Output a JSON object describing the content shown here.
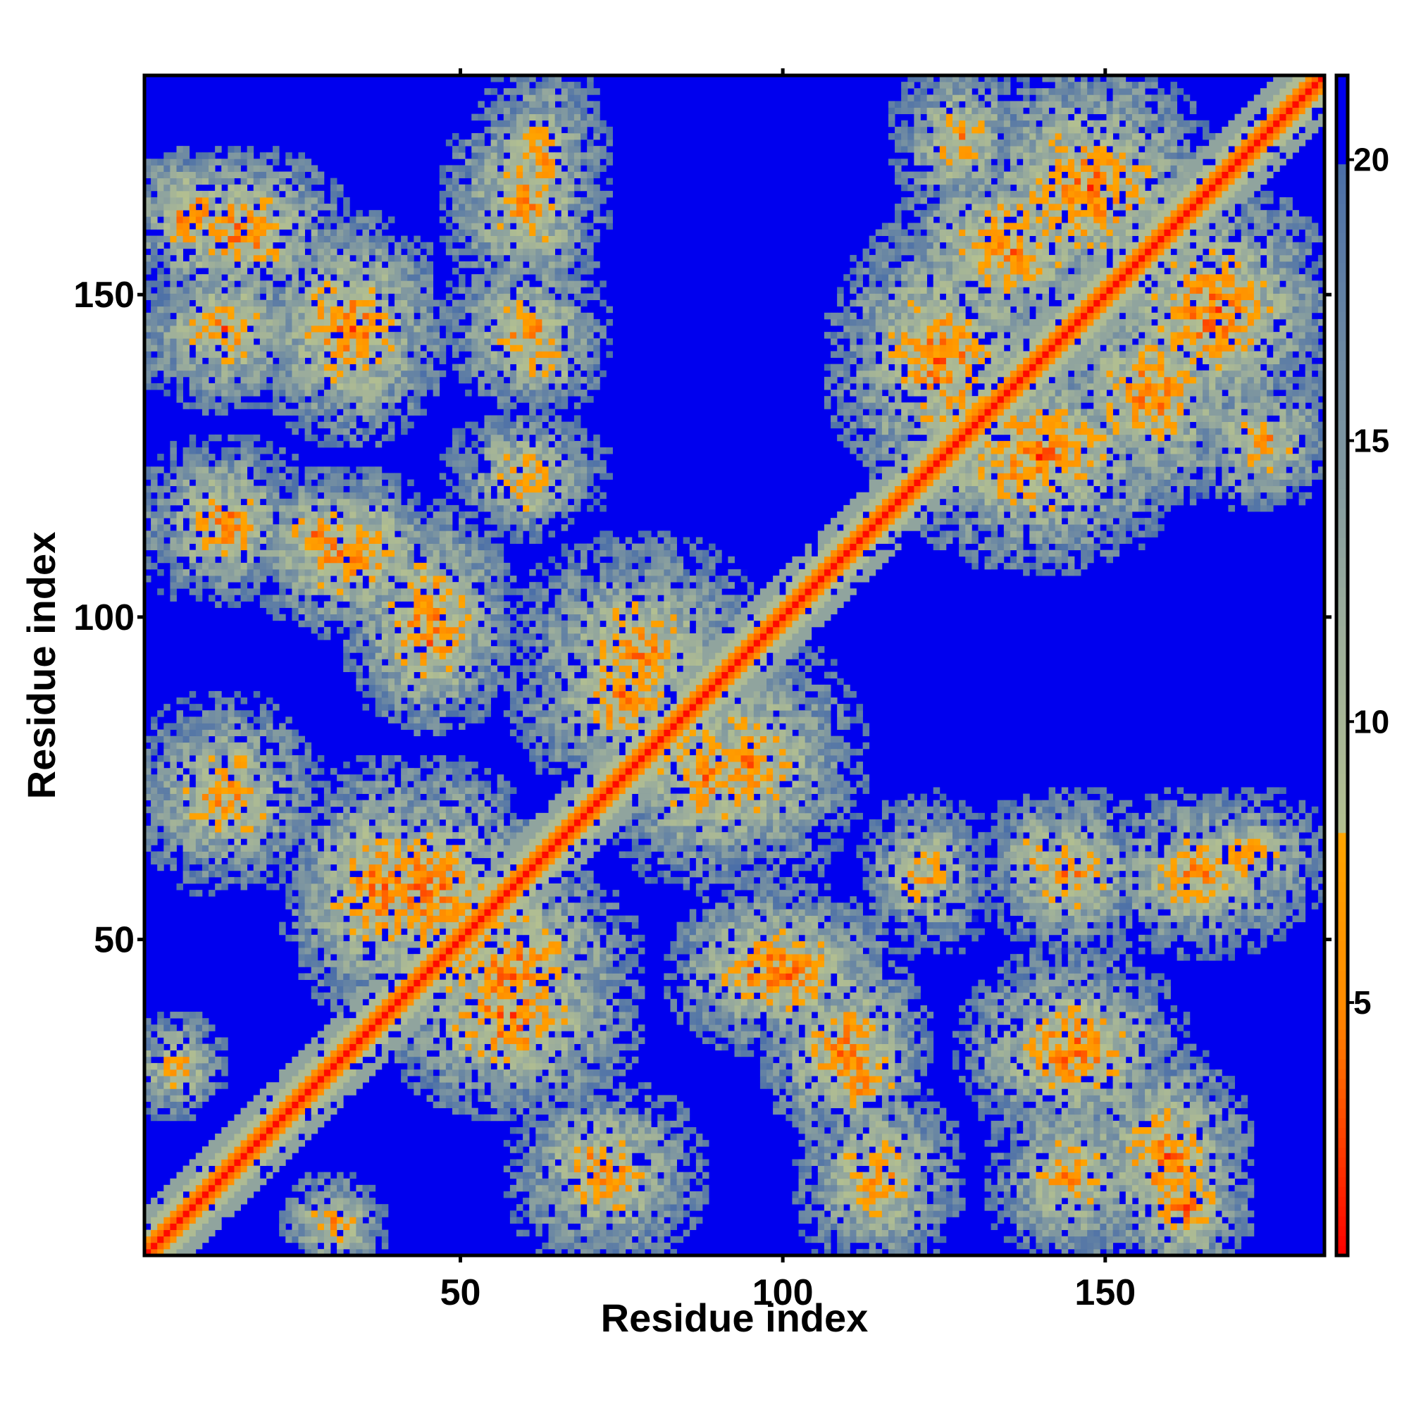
{
  "chart_data": {
    "type": "heatmap",
    "title": "",
    "xlabel": "Residue index",
    "ylabel": "Residue index",
    "n_residues": 184,
    "xlim": [
      1,
      184
    ],
    "ylim": [
      1,
      184
    ],
    "x_ticks": [
      50,
      100,
      150
    ],
    "y_ticks": [
      50,
      100,
      150
    ],
    "x_tick_labels": [
      "50",
      "100",
      "150"
    ],
    "y_tick_labels": [
      "50",
      "100",
      "150"
    ],
    "colorbar": {
      "range": [
        0.5,
        21.5
      ],
      "ticks": [
        5,
        10,
        15,
        20
      ],
      "tick_labels": [
        "5",
        "10",
        "15",
        "20"
      ],
      "stops": [
        {
          "value": 0.5,
          "color": "#ff0000"
        },
        {
          "value": 5.0,
          "color": "#ff8c00"
        },
        {
          "value": 8.0,
          "color": "#ffa500"
        },
        {
          "value": 8.01,
          "color": "#b4c090"
        },
        {
          "value": 12.0,
          "color": "#9aac9c"
        },
        {
          "value": 20.0,
          "color": "#4a6ea8"
        },
        {
          "value": 20.01,
          "color": "#0000ee"
        }
      ]
    },
    "out_of_range_color": "#0000ee",
    "description_of_values": "Symmetric residue-residue distance map: near-zero distances on the diagonal, contact clusters off-diagonal.",
    "contact_clusters": [
      {
        "i": [
          1,
          30
        ],
        "j": [
          150,
          170
        ],
        "min_value": 4
      },
      {
        "i": [
          20,
          45
        ],
        "j": [
          130,
          160
        ],
        "min_value": 4
      },
      {
        "i": [
          50,
          70
        ],
        "j": [
          150,
          180
        ],
        "min_value": 5
      },
      {
        "i": [
          50,
          70
        ],
        "j": [
          135,
          155
        ],
        "min_value": 5
      },
      {
        "i": [
          50,
          70
        ],
        "j": [
          115,
          130
        ],
        "min_value": 6
      },
      {
        "i": [
          1,
          25
        ],
        "j": [
          105,
          125
        ],
        "min_value": 5
      },
      {
        "i": [
          20,
          45
        ],
        "j": [
          100,
          120
        ],
        "min_value": 4
      },
      {
        "i": [
          35,
          55
        ],
        "j": [
          85,
          110
        ],
        "min_value": 4
      },
      {
        "i": [
          60,
          95
        ],
        "j": [
          80,
          110
        ],
        "min_value": 5
      },
      {
        "i": [
          1,
          25
        ],
        "j": [
          60,
          85
        ],
        "min_value": 5
      },
      {
        "i": [
          25,
          50
        ],
        "j": [
          40,
          75
        ],
        "min_value": 4
      },
      {
        "i": [
          40,
          75
        ],
        "j": [
          30,
          60
        ],
        "min_value": 4
      },
      {
        "i": [
          85,
          115
        ],
        "j": [
          35,
          55
        ],
        "min_value": 4
      },
      {
        "i": [
          75,
          100
        ],
        "j": [
          60,
          90
        ],
        "min_value": 5
      },
      {
        "i": [
          105,
          120
        ],
        "j": [
          20,
          35
        ],
        "min_value": 5
      },
      {
        "i": [
          60,
          80
        ],
        "j": [
          5,
          25
        ],
        "min_value": 6
      },
      {
        "i": [
          25,
          35
        ],
        "j": [
          1,
          10
        ],
        "min_value": 5
      },
      {
        "i": [
          105,
          120
        ],
        "j": [
          1,
          25
        ],
        "min_value": 6
      },
      {
        "i": [
          135,
          155
        ],
        "j": [
          1,
          25
        ],
        "min_value": 5
      },
      {
        "i": [
          155,
          170
        ],
        "j": [
          1,
          15
        ],
        "min_value": 4
      },
      {
        "i": [
          135,
          160
        ],
        "j": [
          20,
          45
        ],
        "min_value": 5
      },
      {
        "i": [
          115,
          125
        ],
        "j": [
          55,
          65
        ],
        "min_value": 6
      },
      {
        "i": [
          135,
          145
        ],
        "j": [
          55,
          70
        ],
        "min_value": 6
      },
      {
        "i": [
          160,
          184
        ],
        "j": [
          55,
          70
        ],
        "min_value": 6
      },
      {
        "i": [
          110,
          140
        ],
        "j": [
          120,
          160
        ],
        "min_value": 4
      },
      {
        "i": [
          130,
          165
        ],
        "j": [
          150,
          184
        ],
        "min_value": 4
      },
      {
        "i": [
          145,
          170
        ],
        "j": [
          120,
          150
        ],
        "min_value": 4
      },
      {
        "i": [
          165,
          184
        ],
        "j": [
          120,
          135
        ],
        "min_value": 5
      }
    ]
  }
}
